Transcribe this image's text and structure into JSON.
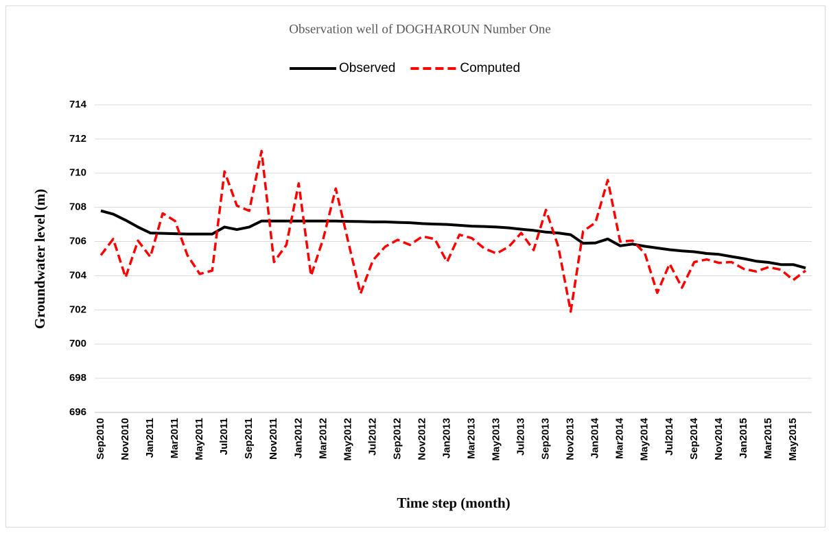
{
  "chart_data": {
    "type": "line",
    "title": "Observation well of DOGHAROUN Number One",
    "xlabel": "Time step (month)",
    "ylabel": "Groundwater level (m)",
    "categories": [
      "Sep2010",
      null,
      "Nov2010",
      null,
      "Jan2011",
      null,
      "Mar2011",
      null,
      "May2011",
      null,
      "Jul2011",
      null,
      "Sep2011",
      null,
      "Nov2011",
      null,
      "Jan2012",
      null,
      "Mar2012",
      null,
      "May2012",
      null,
      "Jul2012",
      null,
      "Sep2012",
      null,
      "Nov2012",
      null,
      "Jan2013",
      null,
      "Mar2013",
      null,
      "May2013",
      null,
      "Jul2013",
      null,
      "Sep2013",
      null,
      "Nov2013",
      null,
      "Jan2014",
      null,
      "Mar2014",
      null,
      "May2014",
      null,
      "Jul2014",
      null,
      "Sep2014",
      null,
      "Nov2014",
      null,
      "Jan2015",
      null,
      "Mar2015",
      null,
      "May2015",
      null
    ],
    "series": [
      {
        "name": "Observed",
        "color": "#000000",
        "dashed": false,
        "values": [
          707.8,
          707.6,
          707.25,
          706.85,
          706.5,
          706.48,
          706.46,
          706.44,
          706.44,
          706.44,
          706.85,
          706.7,
          706.85,
          707.2,
          707.2,
          707.2,
          707.2,
          707.2,
          707.2,
          707.2,
          707.18,
          707.17,
          707.15,
          707.15,
          707.12,
          707.1,
          707.05,
          707.02,
          707.0,
          706.95,
          706.9,
          706.88,
          706.85,
          706.8,
          706.72,
          706.65,
          706.55,
          706.5,
          706.4,
          705.9,
          705.92,
          706.15,
          705.75,
          705.85,
          705.72,
          705.62,
          705.52,
          705.45,
          705.4,
          705.3,
          705.25,
          705.12,
          705.0,
          704.85,
          704.78,
          704.65,
          704.65,
          704.45
        ]
      },
      {
        "name": "Computed",
        "color": "#ff0000",
        "dashed": true,
        "values": [
          705.2,
          706.15,
          703.9,
          706.05,
          705.1,
          707.65,
          707.2,
          705.2,
          704.1,
          704.3,
          710.1,
          708.1,
          707.8,
          711.3,
          704.8,
          705.8,
          709.4,
          704.0,
          706.2,
          709.1,
          706.0,
          702.95,
          704.9,
          705.7,
          706.1,
          705.8,
          706.3,
          706.15,
          704.8,
          706.4,
          706.2,
          705.6,
          705.3,
          705.7,
          706.5,
          705.5,
          707.85,
          705.7,
          701.9,
          706.6,
          707.1,
          709.6,
          706.0,
          706.05,
          705.3,
          703.0,
          704.7,
          703.3,
          704.8,
          704.95,
          704.75,
          704.8,
          704.4,
          704.25,
          704.5,
          704.35,
          703.75,
          704.3
        ]
      }
    ],
    "ylim": [
      696,
      714
    ],
    "yticks": [
      696,
      698,
      700,
      702,
      704,
      706,
      708,
      710,
      712,
      714
    ],
    "grid": true,
    "legend": "top"
  }
}
